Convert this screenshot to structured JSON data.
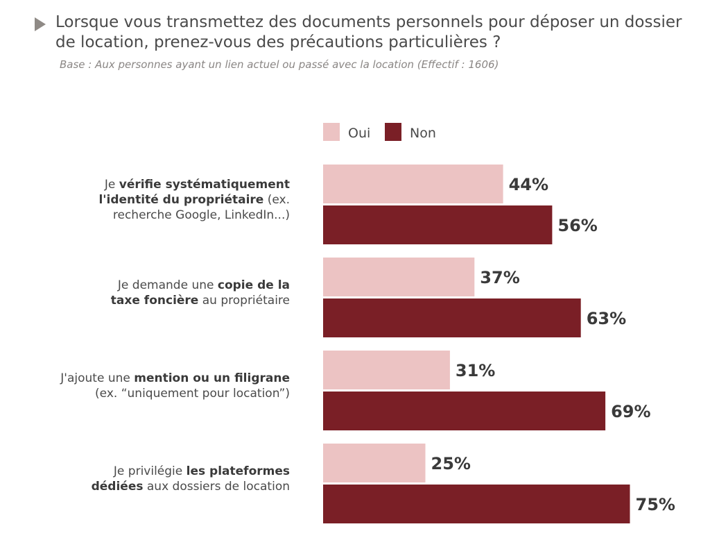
{
  "header": {
    "title": "Lorsque vous transmettez des documents personnels pour déposer un dossier de location, prenez-vous des précautions particulières ?",
    "subtitle": "Base : Aux personnes ayant un lien actuel ou passé avec la location (Effectif : 1606)"
  },
  "colors": {
    "oui": "#ecc3c3",
    "non": "#7a1f26"
  },
  "chart_data": {
    "type": "bar",
    "orientation": "horizontal",
    "title": "Lorsque vous transmettez des documents personnels pour déposer un dossier de location, prenez-vous des précautions particulières ?",
    "subtitle": "Base : Aux personnes ayant un lien actuel ou passé avec la location (Effectif : 1606)",
    "xlim": [
      0,
      100
    ],
    "grid": false,
    "legend": "top",
    "categories": [
      {
        "label": "Je vérifie systématiquement l'identité du propriétaire (ex. recherche Google, LinkedIn...)",
        "parts": [
          [
            {
              "t": "Je ",
              "b": false
            },
            {
              "t": "vérifie systématiquement",
              "b": true
            }
          ],
          [
            {
              "t": "l'identité du propriétaire",
              "b": true
            },
            {
              "t": " (ex.",
              "b": false
            }
          ],
          [
            {
              "t": "recherche Google, LinkedIn...)",
              "b": false
            }
          ]
        ]
      },
      {
        "label": "Je demande une copie de la taxe foncière au propriétaire",
        "parts": [
          [
            {
              "t": "Je demande une ",
              "b": false
            },
            {
              "t": "copie de la",
              "b": true
            }
          ],
          [
            {
              "t": "taxe foncière",
              "b": true
            },
            {
              "t": " au propriétaire",
              "b": false
            }
          ]
        ]
      },
      {
        "label": "J'ajoute une mention ou un filigrane (ex. “uniquement pour location”)",
        "parts": [
          [
            {
              "t": "J'ajoute une ",
              "b": false
            },
            {
              "t": "mention ou un filigrane",
              "b": true
            }
          ],
          [
            {
              "t": "(ex. “uniquement pour location”)",
              "b": false
            }
          ]
        ]
      },
      {
        "label": "Je privilégie les plateformes dédiées aux dossiers de location",
        "parts": [
          [
            {
              "t": "Je privilégie ",
              "b": false
            },
            {
              "t": "les plateformes",
              "b": true
            }
          ],
          [
            {
              "t": "dédiées",
              "b": true
            },
            {
              "t": " aux dossiers de location",
              "b": false
            }
          ]
        ]
      }
    ],
    "series": [
      {
        "name": "Oui",
        "values": [
          44,
          37,
          31,
          25
        ],
        "labels": [
          "44%",
          "37%",
          "31%",
          "25%"
        ]
      },
      {
        "name": "Non",
        "values": [
          56,
          63,
          69,
          75
        ],
        "labels": [
          "56%",
          "63%",
          "69%",
          "75%"
        ]
      }
    ]
  }
}
